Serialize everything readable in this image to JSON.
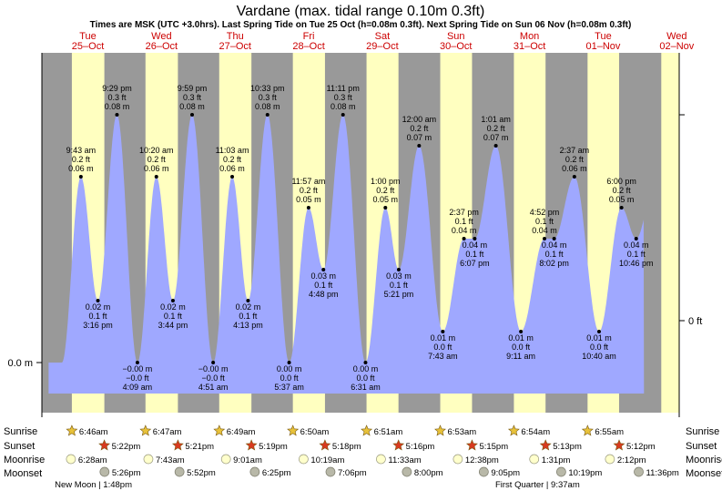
{
  "chart_data": {
    "type": "area",
    "title": "Vardane (max. tidal range 0.10m 0.3ft)",
    "subtitle": "Times are MSK (UTC +3.0hrs). Last Spring Tide on Tue 25 Oct (h=0.08m 0.3ft). Next Spring Tide on Sun 06 Nov (h=0.08m 0.3ft)",
    "left_axis_label": "0.0 m",
    "right_axis_label": "0 ft",
    "y_range_m": [
      -0.02,
      0.095
    ],
    "x_range_hours": [
      -3,
      204.8
    ],
    "days": [
      {
        "dow": "Tue",
        "date": "25–Oct"
      },
      {
        "dow": "Wed",
        "date": "26–Oct"
      },
      {
        "dow": "Thu",
        "date": "27–Oct"
      },
      {
        "dow": "Fri",
        "date": "28–Oct"
      },
      {
        "dow": "Sat",
        "date": "29–Oct"
      },
      {
        "dow": "Sun",
        "date": "30–Oct"
      },
      {
        "dow": "Mon",
        "date": "31–Oct"
      },
      {
        "dow": "Tue",
        "date": "01–Nov"
      },
      {
        "dow": "Wed",
        "date": "02–Nov"
      }
    ],
    "extremes": [
      {
        "time": "9:43 am",
        "ft": "0.2 ft",
        "m": "0.06 m",
        "height": 0.06,
        "hour": 9.72
      },
      {
        "time": "3:16 pm",
        "ft": "0.1 ft",
        "m": "0.02 m",
        "height": 0.02,
        "hour": 15.27
      },
      {
        "time": "9:29 pm",
        "ft": "0.3 ft",
        "m": "0.08 m",
        "height": 0.08,
        "hour": 21.48
      },
      {
        "time": "4:09 am",
        "ft": "−0.0 ft",
        "m": "−0.00 m",
        "height": 0.0,
        "hour": 28.15
      },
      {
        "time": "10:20 am",
        "ft": "0.2 ft",
        "m": "0.06 m",
        "height": 0.06,
        "hour": 34.33
      },
      {
        "time": "3:44 pm",
        "ft": "0.1 ft",
        "m": "0.02 m",
        "height": 0.02,
        "hour": 39.73
      },
      {
        "time": "9:59 pm",
        "ft": "0.3 ft",
        "m": "0.08 m",
        "height": 0.08,
        "hour": 45.98
      },
      {
        "time": "4:51 am",
        "ft": "−0.0 ft",
        "m": "−0.00 m",
        "height": 0.0,
        "hour": 52.85
      },
      {
        "time": "11:03 am",
        "ft": "0.2 ft",
        "m": "0.06 m",
        "height": 0.06,
        "hour": 59.05
      },
      {
        "time": "4:13 pm",
        "ft": "0.1 ft",
        "m": "0.02 m",
        "height": 0.02,
        "hour": 64.22
      },
      {
        "time": "10:33 pm",
        "ft": "0.3 ft",
        "m": "0.08 m",
        "height": 0.08,
        "hour": 70.55
      },
      {
        "time": "5:37 am",
        "ft": "0.0 ft",
        "m": "0.00 m",
        "height": 0.0,
        "hour": 77.62
      },
      {
        "time": "11:57 am",
        "ft": "0.2 ft",
        "m": "0.05 m",
        "height": 0.05,
        "hour": 83.95
      },
      {
        "time": "4:48 pm",
        "ft": "0.1 ft",
        "m": "0.03 m",
        "height": 0.03,
        "hour": 88.8
      },
      {
        "time": "11:11 pm",
        "ft": "0.3 ft",
        "m": "0.08 m",
        "height": 0.08,
        "hour": 95.18
      },
      {
        "time": "6:31 am",
        "ft": "0.0 ft",
        "m": "0.00 m",
        "height": 0.0,
        "hour": 102.52
      },
      {
        "time": "1:00 pm",
        "ft": "0.2 ft",
        "m": "0.05 m",
        "height": 0.05,
        "hour": 109.0
      },
      {
        "time": "5:21 pm",
        "ft": "0.1 ft",
        "m": "0.03 m",
        "height": 0.03,
        "hour": 113.35
      },
      {
        "time": "12:00 am",
        "ft": "0.2 ft",
        "m": "0.07 m",
        "height": 0.07,
        "hour": 120.0
      },
      {
        "time": "7:43 am",
        "ft": "0.0 ft",
        "m": "0.01 m",
        "height": 0.01,
        "hour": 127.72
      },
      {
        "time": "2:37 pm",
        "ft": "0.1 ft",
        "m": "0.04 m",
        "height": 0.04,
        "hour": 134.62
      },
      {
        "time": "6:07 pm",
        "ft": "0.1 ft",
        "m": "0.04 m",
        "height": 0.04,
        "hour": 138.12
      },
      {
        "time": "1:01 am",
        "ft": "0.2 ft",
        "m": "0.07 m",
        "height": 0.07,
        "hour": 145.02
      },
      {
        "time": "9:11 am",
        "ft": "0.0 ft",
        "m": "0.01 m",
        "height": 0.01,
        "hour": 153.18
      },
      {
        "time": "4:52 pm",
        "ft": "0.1 ft",
        "m": "0.04 m",
        "height": 0.04,
        "hour": 160.87
      },
      {
        "time": "8:02 pm",
        "ft": "0.1 ft",
        "m": "0.04 m",
        "height": 0.04,
        "hour": 164.03
      },
      {
        "time": "2:37 am",
        "ft": "0.2 ft",
        "m": "0.06 m",
        "height": 0.06,
        "hour": 170.62
      },
      {
        "time": "10:40 am",
        "ft": "0.0 ft",
        "m": "0.01 m",
        "height": 0.01,
        "hour": 178.67
      },
      {
        "time": "6:00 pm",
        "ft": "0.2 ft",
        "m": "0.05 m",
        "height": 0.05,
        "hour": 186.0
      },
      {
        "time": "10:46 pm",
        "ft": "0.1 ft",
        "m": "0.04 m",
        "height": 0.04,
        "hour": 190.77
      }
    ],
    "daylight_hours": [
      [
        6.77,
        17.37
      ],
      [
        30.78,
        41.35
      ],
      [
        54.82,
        65.32
      ],
      [
        78.83,
        89.3
      ],
      [
        102.85,
        113.27
      ],
      [
        126.88,
        137.25
      ],
      [
        150.9,
        161.22
      ],
      [
        174.92,
        185.2
      ],
      [
        198.95,
        205
      ]
    ],
    "row_labels": [
      "Sunrise",
      "Sunset",
      "Moonrise",
      "Moonset"
    ],
    "sunrise": [
      "6:46am",
      "6:47am",
      "6:49am",
      "6:50am",
      "6:51am",
      "6:53am",
      "6:54am",
      "6:55am"
    ],
    "sunset": [
      "5:22pm",
      "5:21pm",
      "5:19pm",
      "5:18pm",
      "5:16pm",
      "5:15pm",
      "5:13pm",
      "5:12pm"
    ],
    "moonrise": [
      "6:28am",
      "7:43am",
      "9:01am",
      "10:19am",
      "11:33am",
      "12:38pm",
      "1:31pm",
      "2:12pm"
    ],
    "moonset": [
      "5:26pm",
      "5:52pm",
      "6:25pm",
      "7:06pm",
      "8:00pm",
      "9:05pm",
      "10:19pm",
      "11:36pm"
    ],
    "moon_phases": [
      {
        "text": "New Moon | 1:48pm"
      },
      {
        "text": "First Quarter | 9:37am"
      }
    ],
    "colors": {
      "night": "#999999",
      "day": "#ffffc0",
      "tide": "#9fa8ff",
      "sun_icon": "#e8c23a",
      "sunset_icon": "#d83a1f",
      "moonrise_icon": "#ffffcc",
      "moonset_icon": "#b8b8a8",
      "day_header": "#cc0000"
    }
  }
}
